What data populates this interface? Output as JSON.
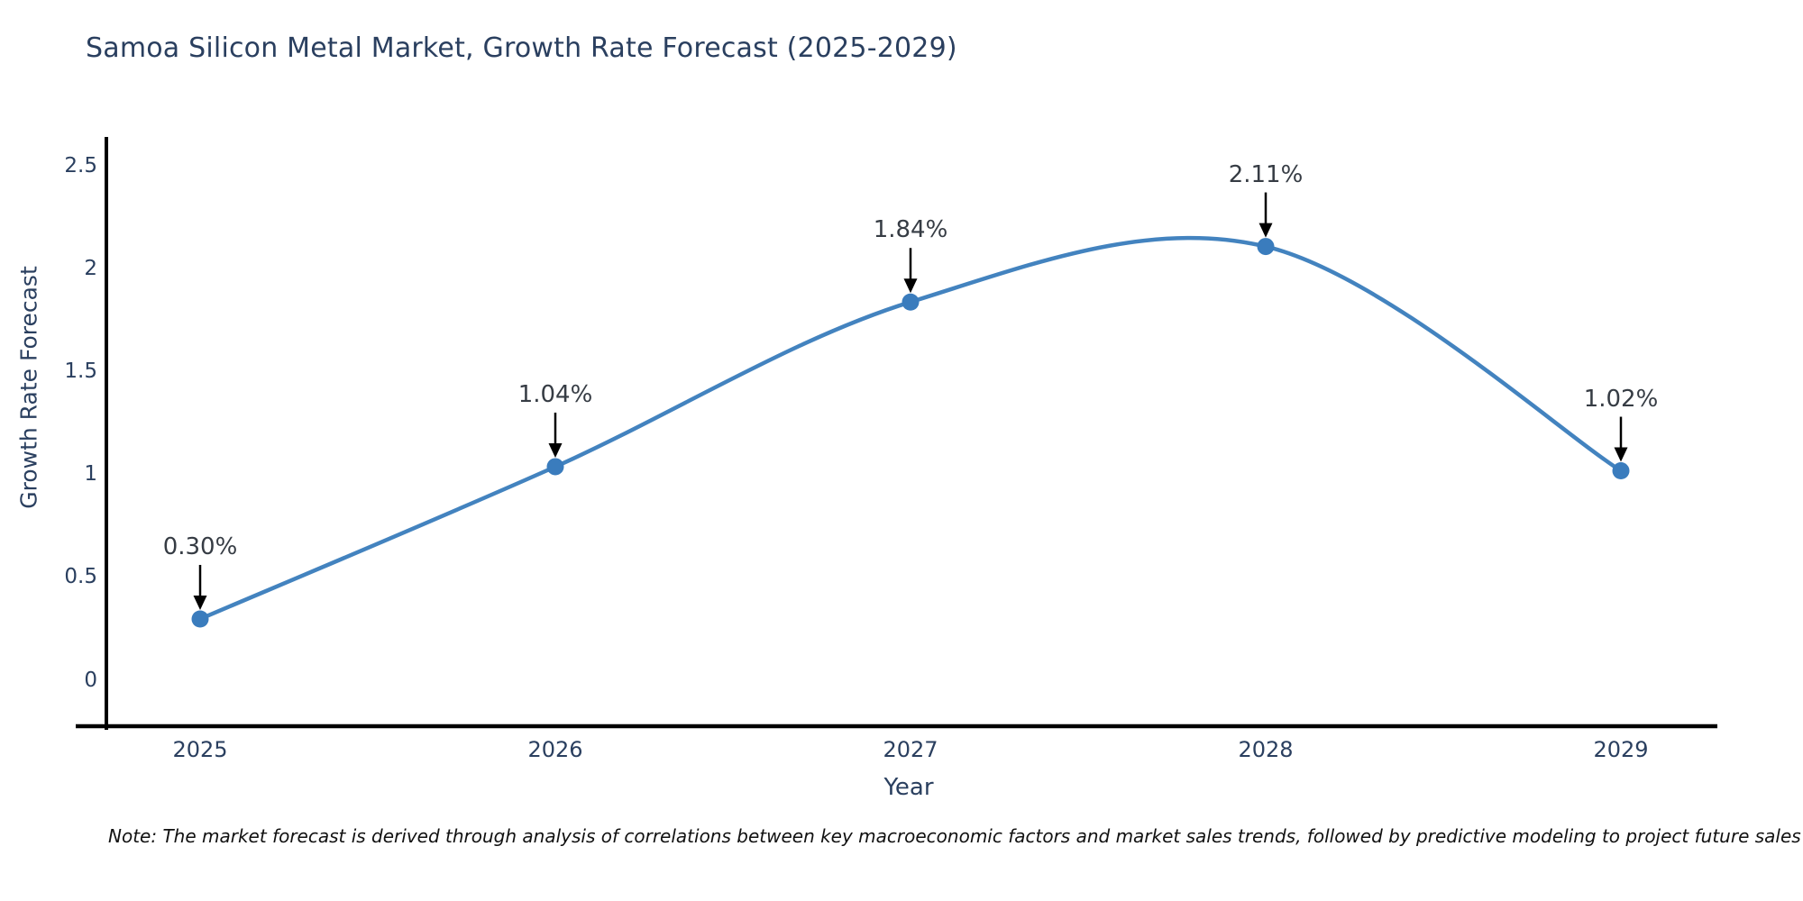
{
  "title": "Samoa Silicon Metal Market, Growth Rate Forecast (2025-2029)",
  "note": "Note: The market forecast is derived through analysis of correlations between key macroeconomic factors and market sales trends, followed by predictive modeling to project future sales",
  "chart_data": {
    "type": "line",
    "title": "Samoa Silicon Metal Market, Growth Rate Forecast (2025-2029)",
    "xlabel": "Year",
    "ylabel": "Growth Rate Forecast",
    "categories": [
      "2025",
      "2026",
      "2027",
      "2028",
      "2029"
    ],
    "x": [
      2025,
      2026,
      2027,
      2028,
      2029
    ],
    "values": [
      0.3,
      1.04,
      1.84,
      2.11,
      1.02
    ],
    "point_labels": [
      "0.30%",
      "1.04%",
      "1.84%",
      "2.11%",
      "1.02%"
    ],
    "yticks": [
      0,
      0.5,
      1,
      1.5,
      2,
      2.5
    ],
    "ytick_labels": [
      "0",
      "0.5",
      "1",
      "1.5",
      "2",
      "2.5"
    ],
    "ylim": [
      0,
      2.5
    ],
    "grid": false,
    "legend_position": "none",
    "smooth": true,
    "annotations_arrowed": true,
    "colors": {
      "line": "#4383bf",
      "marker": "#3a7cbd",
      "axis_line": "#000000",
      "arrow": "#000000",
      "title_text": "#2a3f5f",
      "tick_text": "#2a3f5f",
      "label_text": "#363c44",
      "background": "#ffffff"
    }
  }
}
